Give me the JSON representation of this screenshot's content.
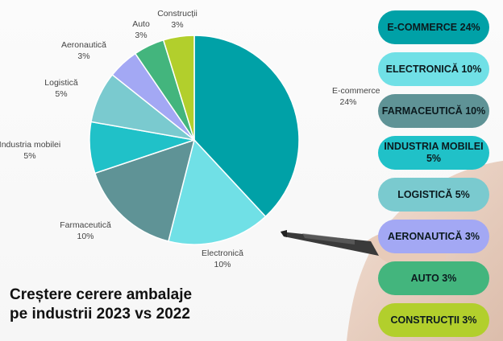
{
  "title_line1": "Creștere cerere ambalaje",
  "title_line2": "pe industrii 2023 vs 2022",
  "chart_data": {
    "type": "pie",
    "slices": [
      {
        "name": "E-commerce",
        "display": "24%",
        "value": 24,
        "color": "#00a1a7"
      },
      {
        "name": "Electronică",
        "display": "10%",
        "value": 10,
        "color": "#70e0e6"
      },
      {
        "name": "Farmaceutică",
        "display": "10%",
        "value": 10,
        "color": "#5f9396"
      },
      {
        "name": "Industria mobilei",
        "display": "5%",
        "value": 5,
        "color": "#20c1c8"
      },
      {
        "name": "Logistică",
        "display": "5%",
        "value": 5,
        "color": "#7acacf"
      },
      {
        "name": "Aeronautică",
        "display": "3%",
        "value": 3,
        "color": "#a3a8f4"
      },
      {
        "name": "Auto",
        "display": "3%",
        "value": 3,
        "color": "#43b57d"
      },
      {
        "name": "Construcții",
        "display": "3%",
        "value": 3,
        "color": "#b2cf2c"
      }
    ]
  },
  "legend": [
    {
      "label": "E-COMMERCE 24%",
      "color": "#00a1a7"
    },
    {
      "label": "ELECTRONICĂ 10%",
      "color": "#70e0e6"
    },
    {
      "label": "FARMACEUTICĂ 10%",
      "color": "#5f9396"
    },
    {
      "label": "INDUSTRIA MOBILEI 5%",
      "color": "#20c1c8"
    },
    {
      "label": "LOGISTICĂ 5%",
      "color": "#7acacf"
    },
    {
      "label": "AERONAUTICĂ 3%",
      "color": "#a3a8f4"
    },
    {
      "label": "AUTO 3%",
      "color": "#43b57d"
    },
    {
      "label": "CONSTRUCȚII 3%",
      "color": "#b2cf2c"
    }
  ]
}
